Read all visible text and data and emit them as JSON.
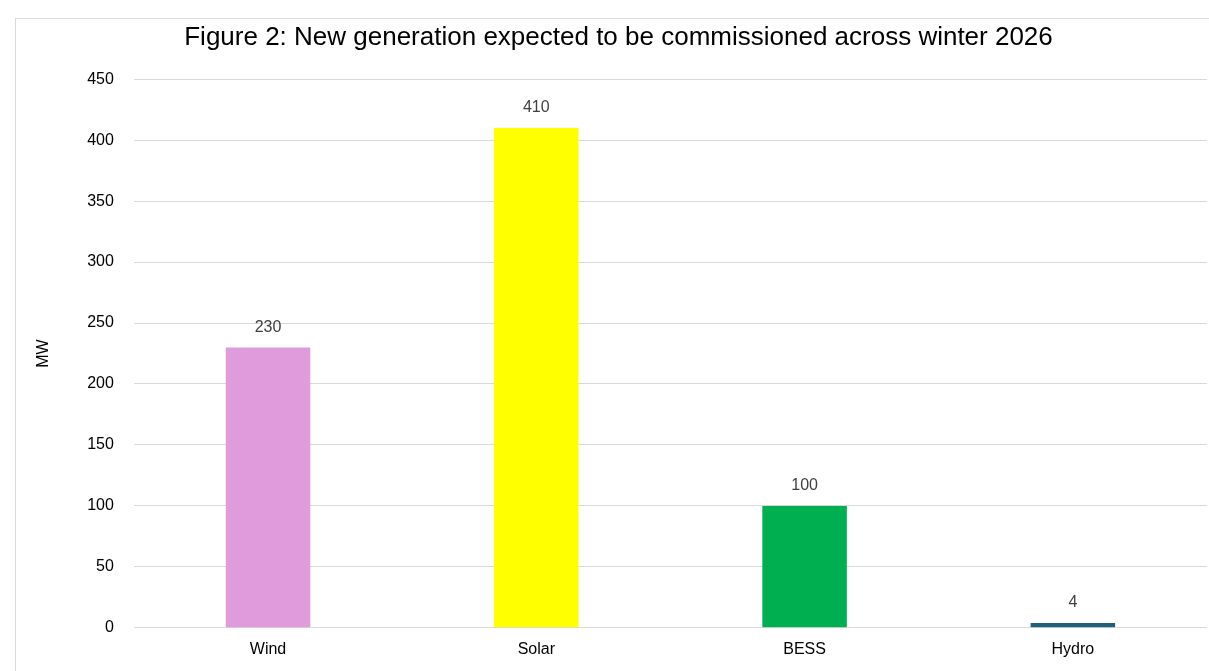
{
  "chart_data": {
    "type": "bar",
    "title": "Figure 2: New generation expected to be commissioned across winter 2026",
    "ylabel": "MW",
    "categories": [
      "Wind",
      "Solar",
      "BESS",
      "Hydro"
    ],
    "values": [
      230,
      410,
      100,
      4
    ],
    "colors": [
      "#e09bdc",
      "#ffff00",
      "#00b050",
      "#1f5f7a"
    ],
    "ylim": [
      0,
      450
    ],
    "yticks": [
      0,
      50,
      100,
      150,
      200,
      250,
      300,
      350,
      400,
      450
    ],
    "grid": "y",
    "data_labels": true,
    "legend": false
  }
}
